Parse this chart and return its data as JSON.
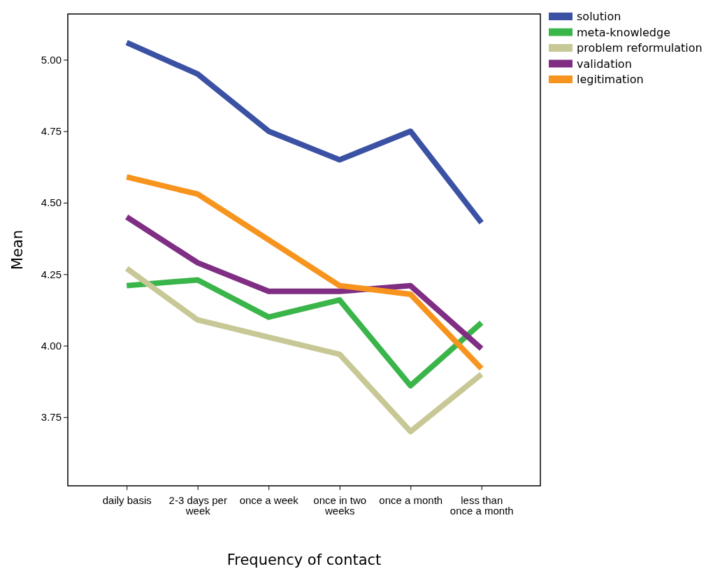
{
  "chart_data": {
    "type": "line",
    "xlabel": "Frequency of contact",
    "ylabel": "Mean",
    "categories": [
      "daily basis",
      "2-3 days per week",
      "once a week",
      "once in two weeks",
      "once a month",
      "less than once a month"
    ],
    "ylim": [
      3.51,
      5.16
    ],
    "yticks": [
      {
        "value": 3.75,
        "label": "3.75"
      },
      {
        "value": 4,
        "label": "4.00"
      },
      {
        "value": 4.25,
        "label": "4.25"
      },
      {
        "value": 4.5,
        "label": "4.50"
      },
      {
        "value": 4.75,
        "label": "4.75"
      },
      {
        "value": 5,
        "label": "5.00"
      }
    ],
    "grid": false,
    "legend": "top right",
    "marker": "none",
    "line_style": "solid",
    "series": [
      {
        "name": "solution",
        "color": "#3b52a4",
        "values": [
          5.06,
          4.95,
          4.75,
          4.65,
          4.75,
          4.43
        ]
      },
      {
        "name": "meta-knowledge",
        "color": "#3ab54a",
        "values": [
          4.21,
          4.23,
          4.1,
          4.16,
          3.86,
          4.08
        ]
      },
      {
        "name": "problem reformulation",
        "color": "#c8c896",
        "values": [
          4.27,
          4.09,
          4.03,
          3.97,
          3.7,
          3.9
        ]
      },
      {
        "name": "validation",
        "color": "#7f2e83",
        "values": [
          4.45,
          4.29,
          4.19,
          4.19,
          4.21,
          3.99
        ]
      },
      {
        "name": "legitimation",
        "color": "#f7941d",
        "values": [
          4.59,
          4.53,
          4.37,
          4.21,
          4.18,
          3.92
        ]
      }
    ]
  }
}
